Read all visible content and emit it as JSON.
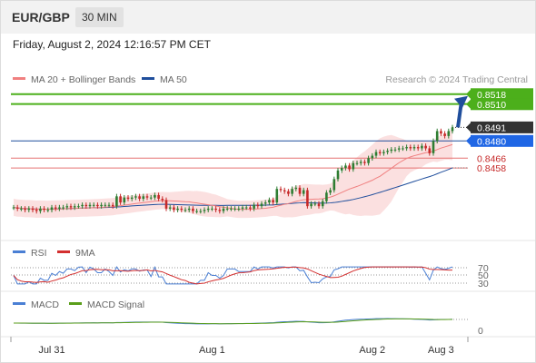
{
  "header": {
    "symbol": "EUR/GBP",
    "timeframe": "30 MIN"
  },
  "datetime": "Friday, August 2, 2024 12:16:57 PM CET",
  "legend": {
    "bollinger": "MA 20 + Bollinger Bands",
    "ma50": "MA 50",
    "credit": "Research © 2024 Trading Central"
  },
  "colors": {
    "bull": "#2e7d32",
    "bear": "#c62828",
    "ma50": "#1f4e9c",
    "ma20": "#f08080",
    "band": "#f9d6d6",
    "target": "#4caf1b",
    "support": "#1f4e9c",
    "pivot": "#e57373",
    "rsi": "#4a7fd4",
    "rsi_ma": "#d32f2f",
    "macd": "#4a7fd4",
    "macd_signal": "#5a9e1a"
  },
  "price_labels": [
    {
      "text": "0.8518",
      "value": 0.8518,
      "style": "target"
    },
    {
      "text": "0.8510",
      "value": 0.851,
      "style": "target"
    },
    {
      "text": "0.8491",
      "value": 0.8491,
      "style": "last"
    },
    {
      "text": "0.8480",
      "value": 0.848,
      "style": "support"
    },
    {
      "text": "0.8466",
      "value": 0.8466,
      "style": "red"
    },
    {
      "text": "0.8458",
      "value": 0.8458,
      "style": "red"
    }
  ],
  "rsi_panel": {
    "legend": [
      "RSI",
      "9MA"
    ],
    "levels": [
      "70",
      "50",
      "30"
    ]
  },
  "macd_panel": {
    "legend": [
      "MACD",
      "MACD Signal"
    ],
    "zero_label": "0"
  },
  "x_axis_labels": [
    "Jul 31",
    "Aug 1",
    "Aug 2",
    "Aug 3"
  ],
  "chart_data": {
    "type": "candlestick",
    "ylim": [
      0.8405,
      0.8523
    ],
    "x_ticks": [
      {
        "label": "Jul 31",
        "index": 10
      },
      {
        "label": "Aug 1",
        "index": 52
      },
      {
        "label": "Aug 2",
        "index": 94
      },
      {
        "label": "Aug 3",
        "index": 112
      }
    ],
    "close": [
      0.8426,
      0.8425,
      0.8425,
      0.8424,
      0.8425,
      0.8424,
      0.8423,
      0.8425,
      0.8424,
      0.8424,
      0.8426,
      0.8425,
      0.8426,
      0.8426,
      0.8427,
      0.8426,
      0.8427,
      0.8427,
      0.8428,
      0.8427,
      0.8428,
      0.8428,
      0.8427,
      0.8428,
      0.8428,
      0.8428,
      0.8427,
      0.8435,
      0.843,
      0.8434,
      0.8433,
      0.8434,
      0.8435,
      0.8433,
      0.8435,
      0.8434,
      0.8434,
      0.8436,
      0.8433,
      0.8432,
      0.8425,
      0.8426,
      0.8424,
      0.8425,
      0.8424,
      0.8424,
      0.8425,
      0.8423,
      0.8423,
      0.8423,
      0.8424,
      0.8425,
      0.8425,
      0.8424,
      0.8423,
      0.8425,
      0.8425,
      0.8425,
      0.8425,
      0.8425,
      0.8426,
      0.8426,
      0.8425,
      0.8428,
      0.8427,
      0.8429,
      0.843,
      0.8432,
      0.843,
      0.8441,
      0.844,
      0.8439,
      0.8437,
      0.8441,
      0.8442,
      0.8437,
      0.844,
      0.8427,
      0.8429,
      0.8429,
      0.8427,
      0.8431,
      0.8438,
      0.844,
      0.8449,
      0.8456,
      0.8458,
      0.846,
      0.8457,
      0.8462,
      0.8462,
      0.8463,
      0.8462,
      0.8466,
      0.8468,
      0.8471,
      0.847,
      0.8471,
      0.8472,
      0.8473,
      0.8473,
      0.8474,
      0.8474,
      0.8475,
      0.8474,
      0.8475,
      0.8474,
      0.8476,
      0.8474,
      0.847,
      0.848,
      0.8488,
      0.8486,
      0.8484,
      0.8488,
      0.8491
    ]
  }
}
